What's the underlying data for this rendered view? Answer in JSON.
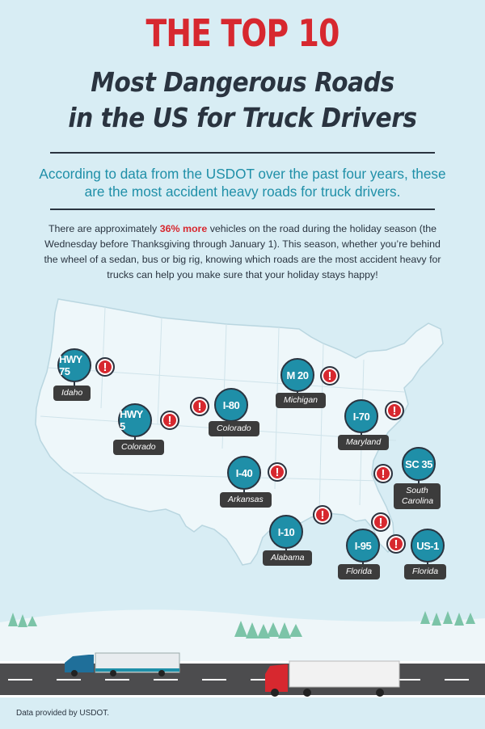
{
  "header": {
    "title_line1": "THE TOP 10",
    "title_line2": "Most Dangerous Roads",
    "title_line3": "in the US for Truck Drivers"
  },
  "intro": "According to data from the USDOT over the past four years, these are the most accident heavy roads for truck drivers.",
  "body": {
    "before": "There are approximately ",
    "highlight": "36% more",
    "after": " vehicles on the road during the holiday season (the Wednesday before Thanksgiving through January 1). This season, whether you’re behind the wheel of a sedan, bus or big rig, knowing which roads are the most accident heavy for trucks can help you make sure that your holiday stays happy!"
  },
  "roads": [
    {
      "road": "HWY 75",
      "state": "Idaho"
    },
    {
      "road": "HWY 5",
      "state": "Colorado"
    },
    {
      "road": "I-80",
      "state": "Colorado"
    },
    {
      "road": "M 20",
      "state": "Michigan"
    },
    {
      "road": "I-70",
      "state": "Maryland"
    },
    {
      "road": "I-40",
      "state": "Arkansas"
    },
    {
      "road": "SC 35",
      "state": "South Carolina"
    },
    {
      "road": "I-10",
      "state": "Alabama"
    },
    {
      "road": "I-95",
      "state": "Florida"
    },
    {
      "road": "US-1",
      "state": "Florida"
    }
  ],
  "alert_symbol": "!",
  "footer": "Data provided by USDOT.",
  "colors": {
    "accent_red": "#d7282f",
    "accent_teal": "#1f8fa8",
    "dark": "#2a3440",
    "sky": "#d8edf4"
  }
}
